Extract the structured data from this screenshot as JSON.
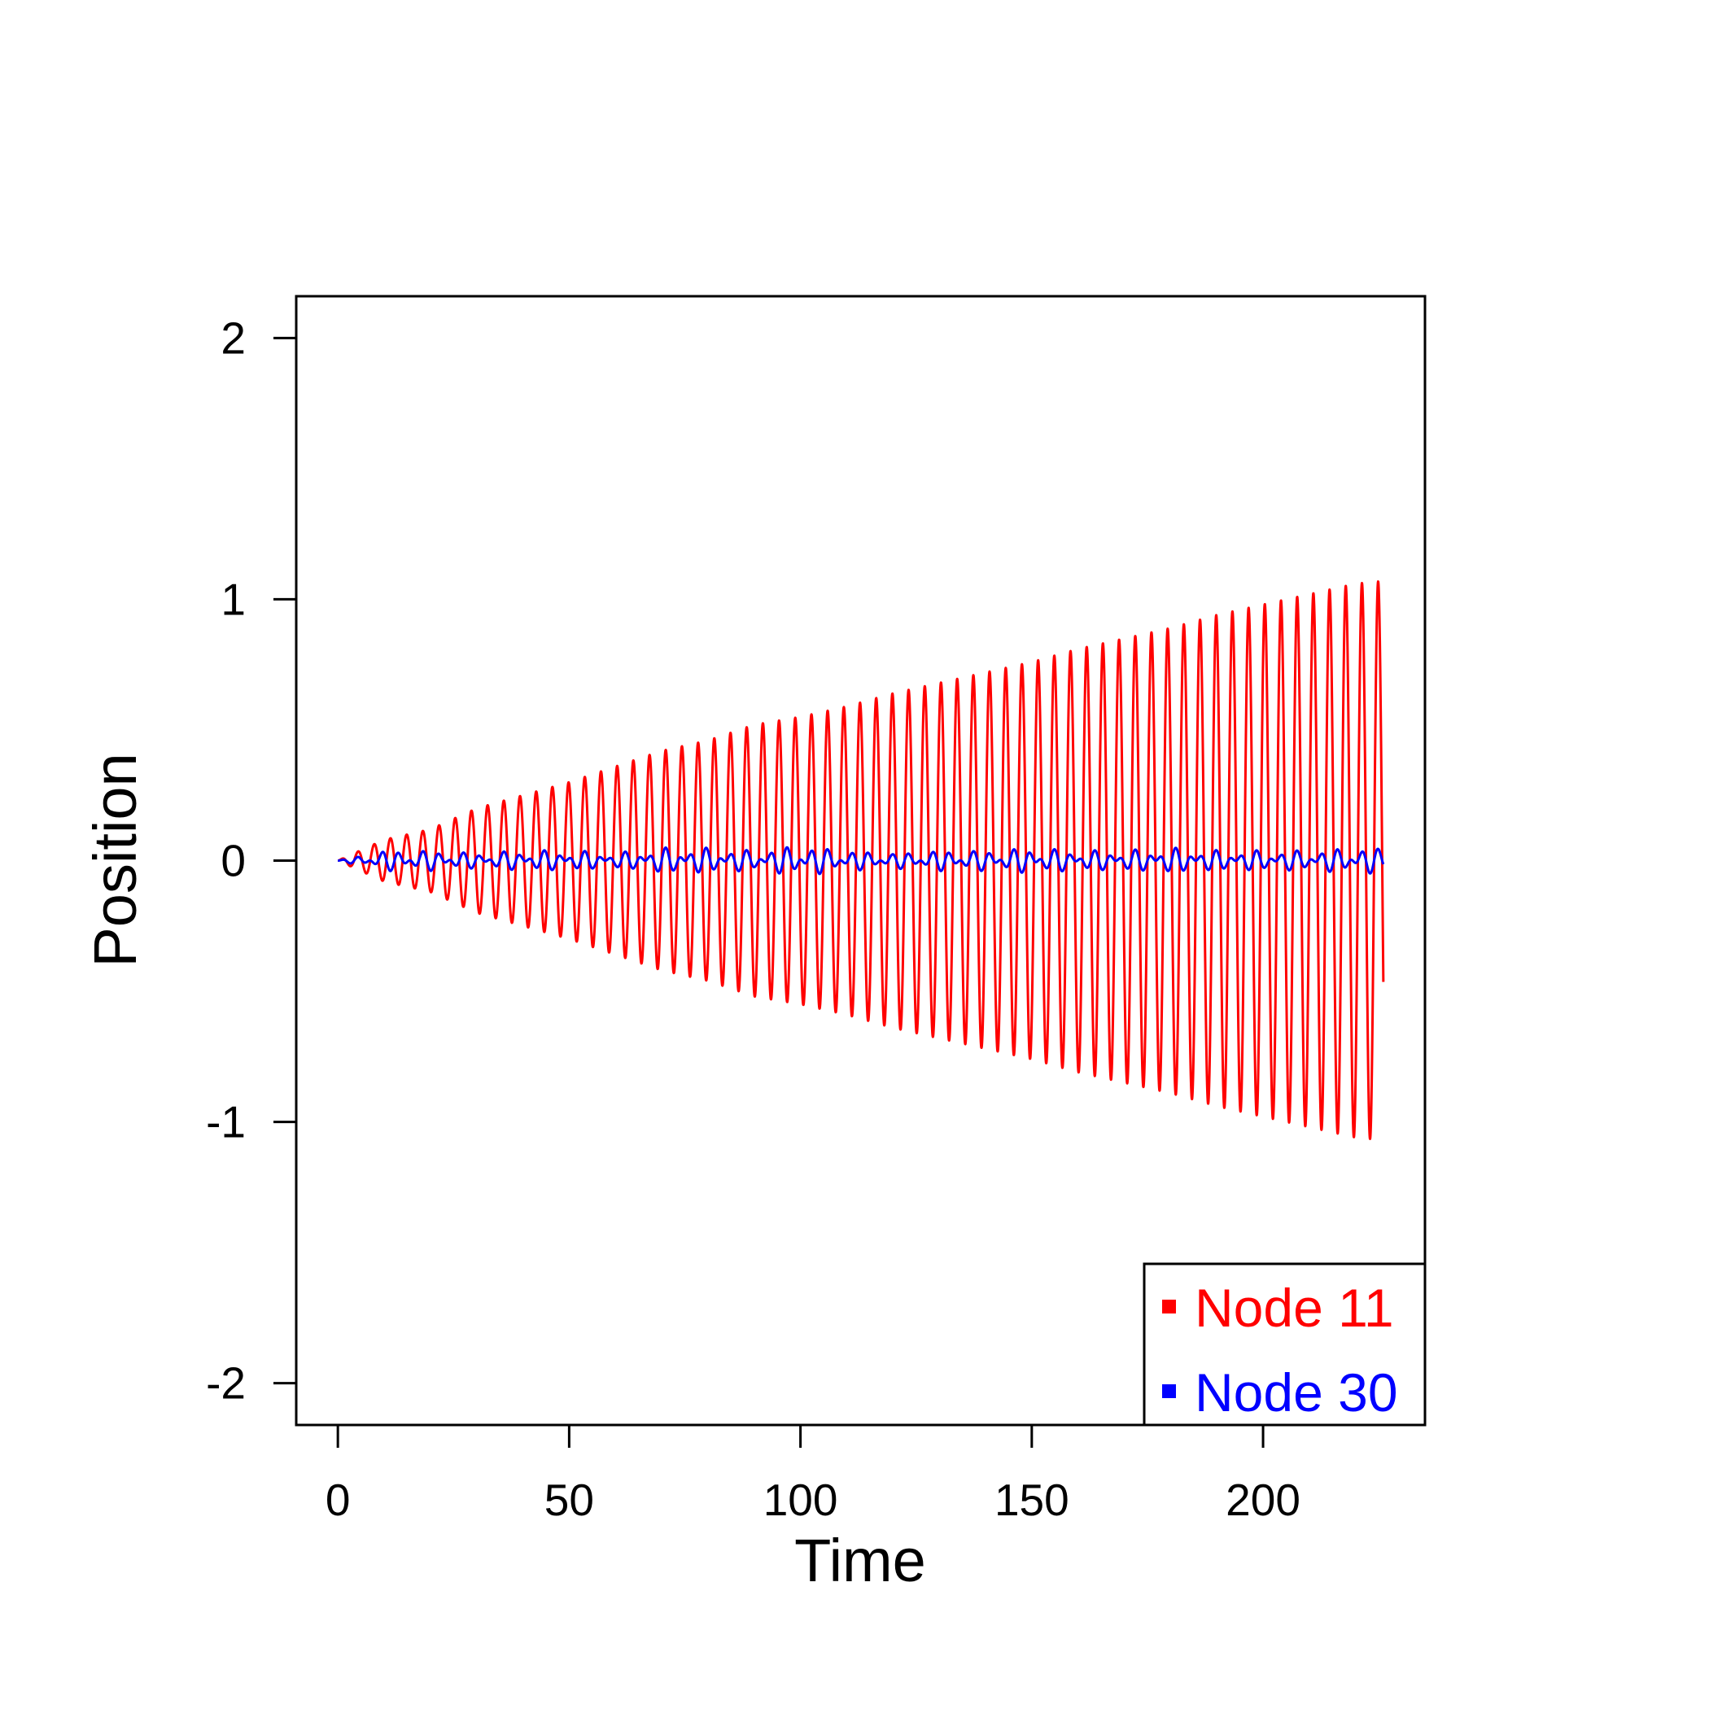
{
  "chart_data": {
    "type": "line",
    "title": "",
    "xlabel": "Time",
    "ylabel": "Position",
    "xlim": [
      -9,
      235
    ],
    "ylim": [
      -2.16,
      2.16
    ],
    "x_ticks": [
      0,
      50,
      100,
      150,
      200
    ],
    "y_ticks": [
      -2,
      -1,
      0,
      1,
      2
    ],
    "x_tick_labels": [
      "0",
      "50",
      "100",
      "150",
      "200"
    ],
    "y_tick_labels": [
      "-2",
      "-1",
      "0",
      "1",
      "2"
    ],
    "grid": false,
    "legend_position": "bottom-right",
    "series": [
      {
        "name": "Node 11",
        "color": "#ff0000",
        "x_range": [
          0,
          226
        ],
        "period": 3.5,
        "envelope": {
          "t": [
            0,
            10,
            20,
            30,
            40,
            50,
            60,
            70,
            80,
            90,
            100,
            110,
            120,
            130,
            140,
            150,
            160,
            170,
            180,
            190,
            200,
            210,
            220,
            226
          ],
          "amplitude": [
            0.0,
            0.08,
            0.12,
            0.2,
            0.25,
            0.3,
            0.36,
            0.42,
            0.46,
            0.52,
            0.55,
            0.59,
            0.64,
            0.68,
            0.72,
            0.76,
            0.81,
            0.85,
            0.89,
            0.94,
            0.98,
            1.02,
            1.06,
            1.07
          ]
        }
      },
      {
        "name": "Node 30",
        "color": "#0000ff",
        "x_range": [
          0,
          226
        ],
        "period": 3.5,
        "envelope": {
          "t": [
            0,
            10,
            20,
            30,
            40,
            50,
            60,
            70,
            80,
            90,
            100,
            110,
            120,
            130,
            140,
            150,
            160,
            170,
            180,
            190,
            200,
            210,
            220,
            226
          ],
          "amplitude": [
            0.0,
            0.04,
            0.04,
            0.03,
            0.04,
            0.04,
            0.03,
            0.05,
            0.05,
            0.04,
            0.06,
            0.04,
            0.03,
            0.04,
            0.04,
            0.05,
            0.04,
            0.04,
            0.05,
            0.04,
            0.04,
            0.04,
            0.05,
            0.05
          ]
        }
      }
    ]
  }
}
